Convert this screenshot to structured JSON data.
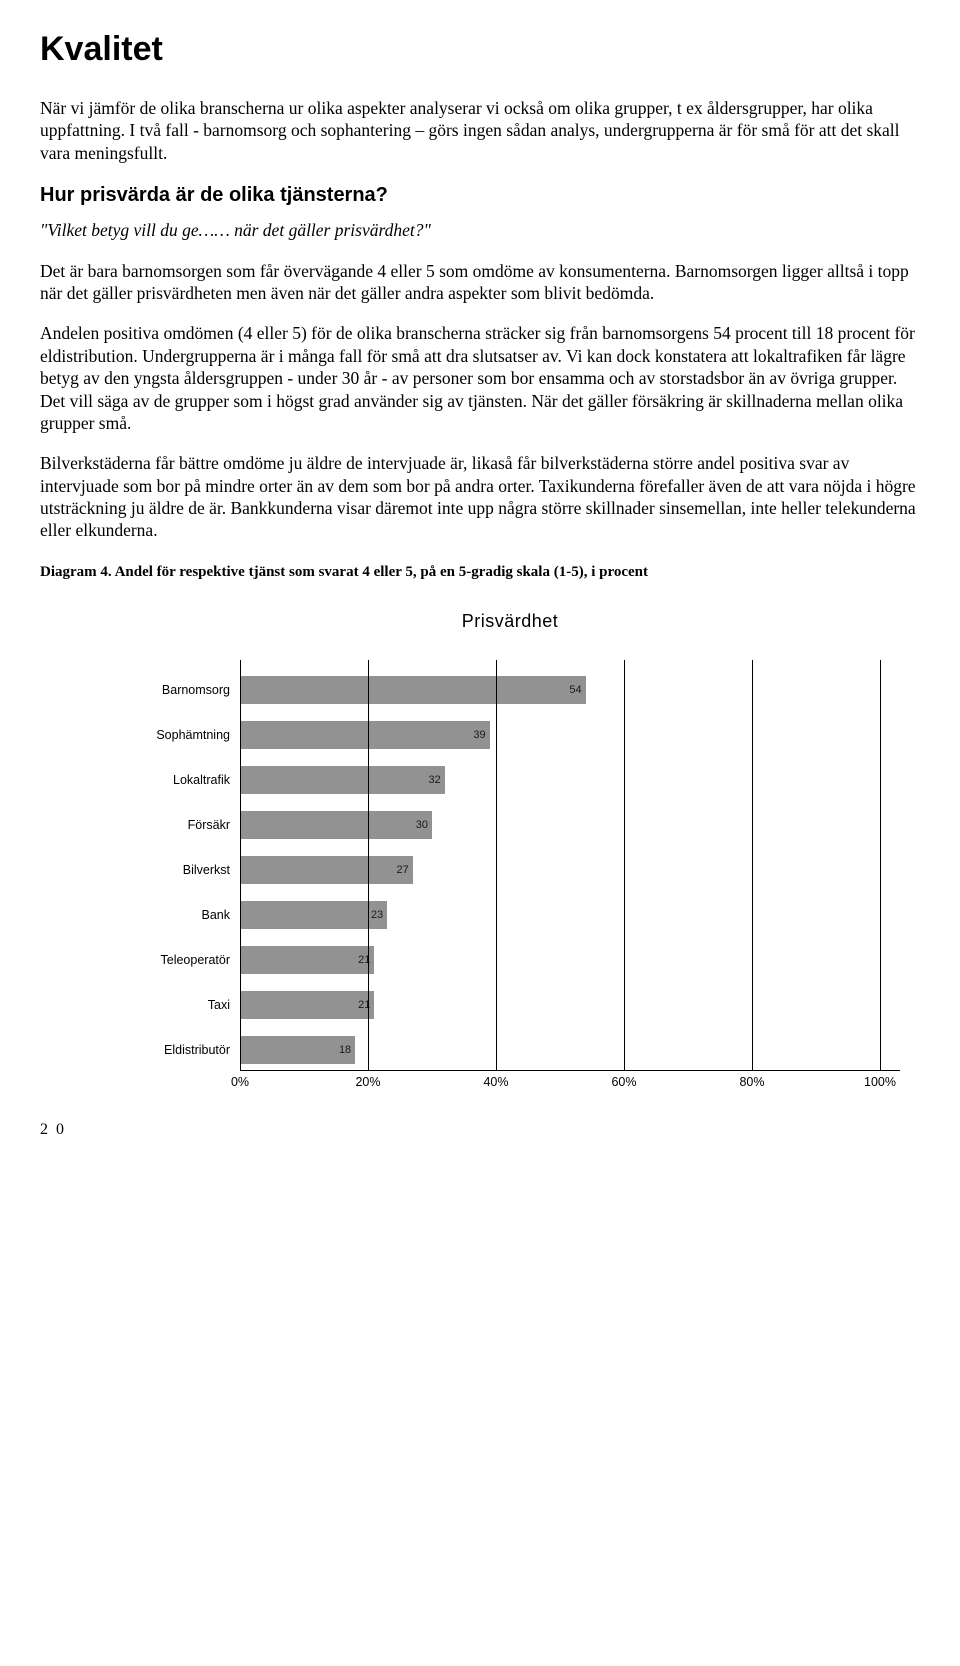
{
  "title": "Kvalitet",
  "para1": "När vi jämför de olika branscherna ur olika aspekter analyserar vi också om olika grupper, t ex åldersgrupper, har olika uppfattning. I två fall - barnomsorg och sophantering – görs ingen sådan analys, undergrupperna är för små för att det skall vara meningsfullt.",
  "heading2": "Hur prisvärda är de olika tjänsterna?",
  "quote": "\"Vilket betyg vill du ge…… när det gäller prisvärdhet?\"",
  "para2": "Det är bara barnomsorgen som får övervägande 4 eller 5 som omdöme av konsumenterna. Barnomsorgen ligger alltså i topp när det gäller prisvärdheten men även när det gäller andra aspekter som blivit bedömda.",
  "para3": "Andelen positiva omdömen (4 eller 5) för de olika branscherna sträcker sig från barnomsorgens 54 procent till 18 procent för eldistribution. Undergrupperna är i många fall för små att dra slutsatser av. Vi kan dock konstatera att lokaltrafiken får lägre betyg av den yngsta åldersgruppen - under 30 år - av personer som bor ensamma och av storstadsbor än av övriga grupper. Det vill säga av de grupper som i högst grad använder sig av tjänsten. När det gäller försäkring är skillnaderna mellan olika grupper små.",
  "para4": "Bilverkstäderna får bättre omdöme ju äldre de intervjuade är, likaså får bilverkstäderna större andel positiva svar av intervjuade som bor på mindre orter än av dem som bor på andra orter. Taxikunderna förefaller även de att vara nöjda i högre utsträckning ju äldre de är. Bankkunderna visar däremot inte upp några större skillnader sinsemellan, inte heller telekunderna eller elkunderna.",
  "caption": "Diagram 4. Andel för respektive tjänst som svarat 4 eller 5, på en 5-gradig skala (1-5), i procent",
  "chart": {
    "title": "Prisvärdhet",
    "xmax": 100,
    "gridStep": 20,
    "barColor": "#929292",
    "gridColor": "#000000",
    "items": [
      {
        "label": "Barnomsorg",
        "value": 54
      },
      {
        "label": "Sophämtning",
        "value": 39
      },
      {
        "label": "Lokaltrafik",
        "value": 32
      },
      {
        "label": "Försäkr",
        "value": 30
      },
      {
        "label": "Bilverkst",
        "value": 27
      },
      {
        "label": "Bank",
        "value": 23
      },
      {
        "label": "Teleoperatör",
        "value": 21
      },
      {
        "label": "Taxi",
        "value": 21
      },
      {
        "label": "Eldistributör",
        "value": 18
      }
    ],
    "ticks": [
      "0%",
      "20%",
      "40%",
      "60%",
      "80%",
      "100%"
    ]
  },
  "pageNumber": "2 0"
}
